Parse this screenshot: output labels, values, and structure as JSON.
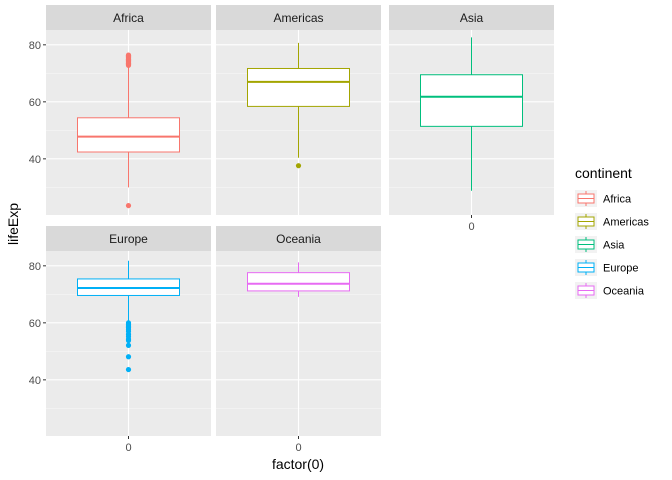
{
  "chart_data": {
    "type": "boxplot",
    "facet_by": "continent",
    "x": {
      "label": "factor(0)",
      "ticks": [
        "0"
      ]
    },
    "y": {
      "label": "lifeExp",
      "ticks": [
        40,
        60,
        80
      ],
      "ylim": [
        20.3,
        85.2
      ]
    },
    "legend": {
      "title": "continent",
      "position": "right"
    },
    "grid": true,
    "panels": [
      {
        "name": "Africa",
        "color": "#F8766D",
        "stats": {
          "whisker_low": 30,
          "q1": 42.4,
          "median": 47.8,
          "q3": 54.4,
          "whisker_high": 72.4
        },
        "outliers": [
          23.6,
          72.8,
          73.0,
          73.2,
          73.4,
          73.6,
          73.8,
          74.0,
          74.2,
          74.4,
          74.6,
          74.8,
          75.0,
          75.2,
          75.4,
          75.6,
          75.8,
          76.0,
          76.2,
          76.4
        ]
      },
      {
        "name": "Americas",
        "color": "#A3A500",
        "stats": {
          "whisker_low": 40.4,
          "q1": 58.4,
          "median": 67.0,
          "q3": 71.7,
          "whisker_high": 80.7
        },
        "outliers": [
          37.6
        ]
      },
      {
        "name": "Asia",
        "color": "#00BF7D",
        "stats": {
          "whisker_low": 28.8,
          "q1": 51.4,
          "median": 61.8,
          "q3": 69.5,
          "whisker_high": 82.6
        },
        "outliers": []
      },
      {
        "name": "Europe",
        "color": "#00B0F6",
        "stats": {
          "whisker_low": 60.5,
          "q1": 69.6,
          "median": 72.2,
          "q3": 75.4,
          "whisker_high": 81.8
        },
        "outliers": [
          43.6,
          48.1,
          52.1,
          53.8,
          54.3,
          55.2,
          56.0,
          57.0,
          57.7,
          58.3,
          58.8,
          59.3,
          59.6,
          60.0
        ]
      },
      {
        "name": "Oceania",
        "color": "#E76BF3",
        "stats": {
          "whisker_low": 69.1,
          "q1": 71.2,
          "median": 73.7,
          "q3": 77.6,
          "whisker_high": 81.2
        },
        "outliers": []
      }
    ]
  }
}
